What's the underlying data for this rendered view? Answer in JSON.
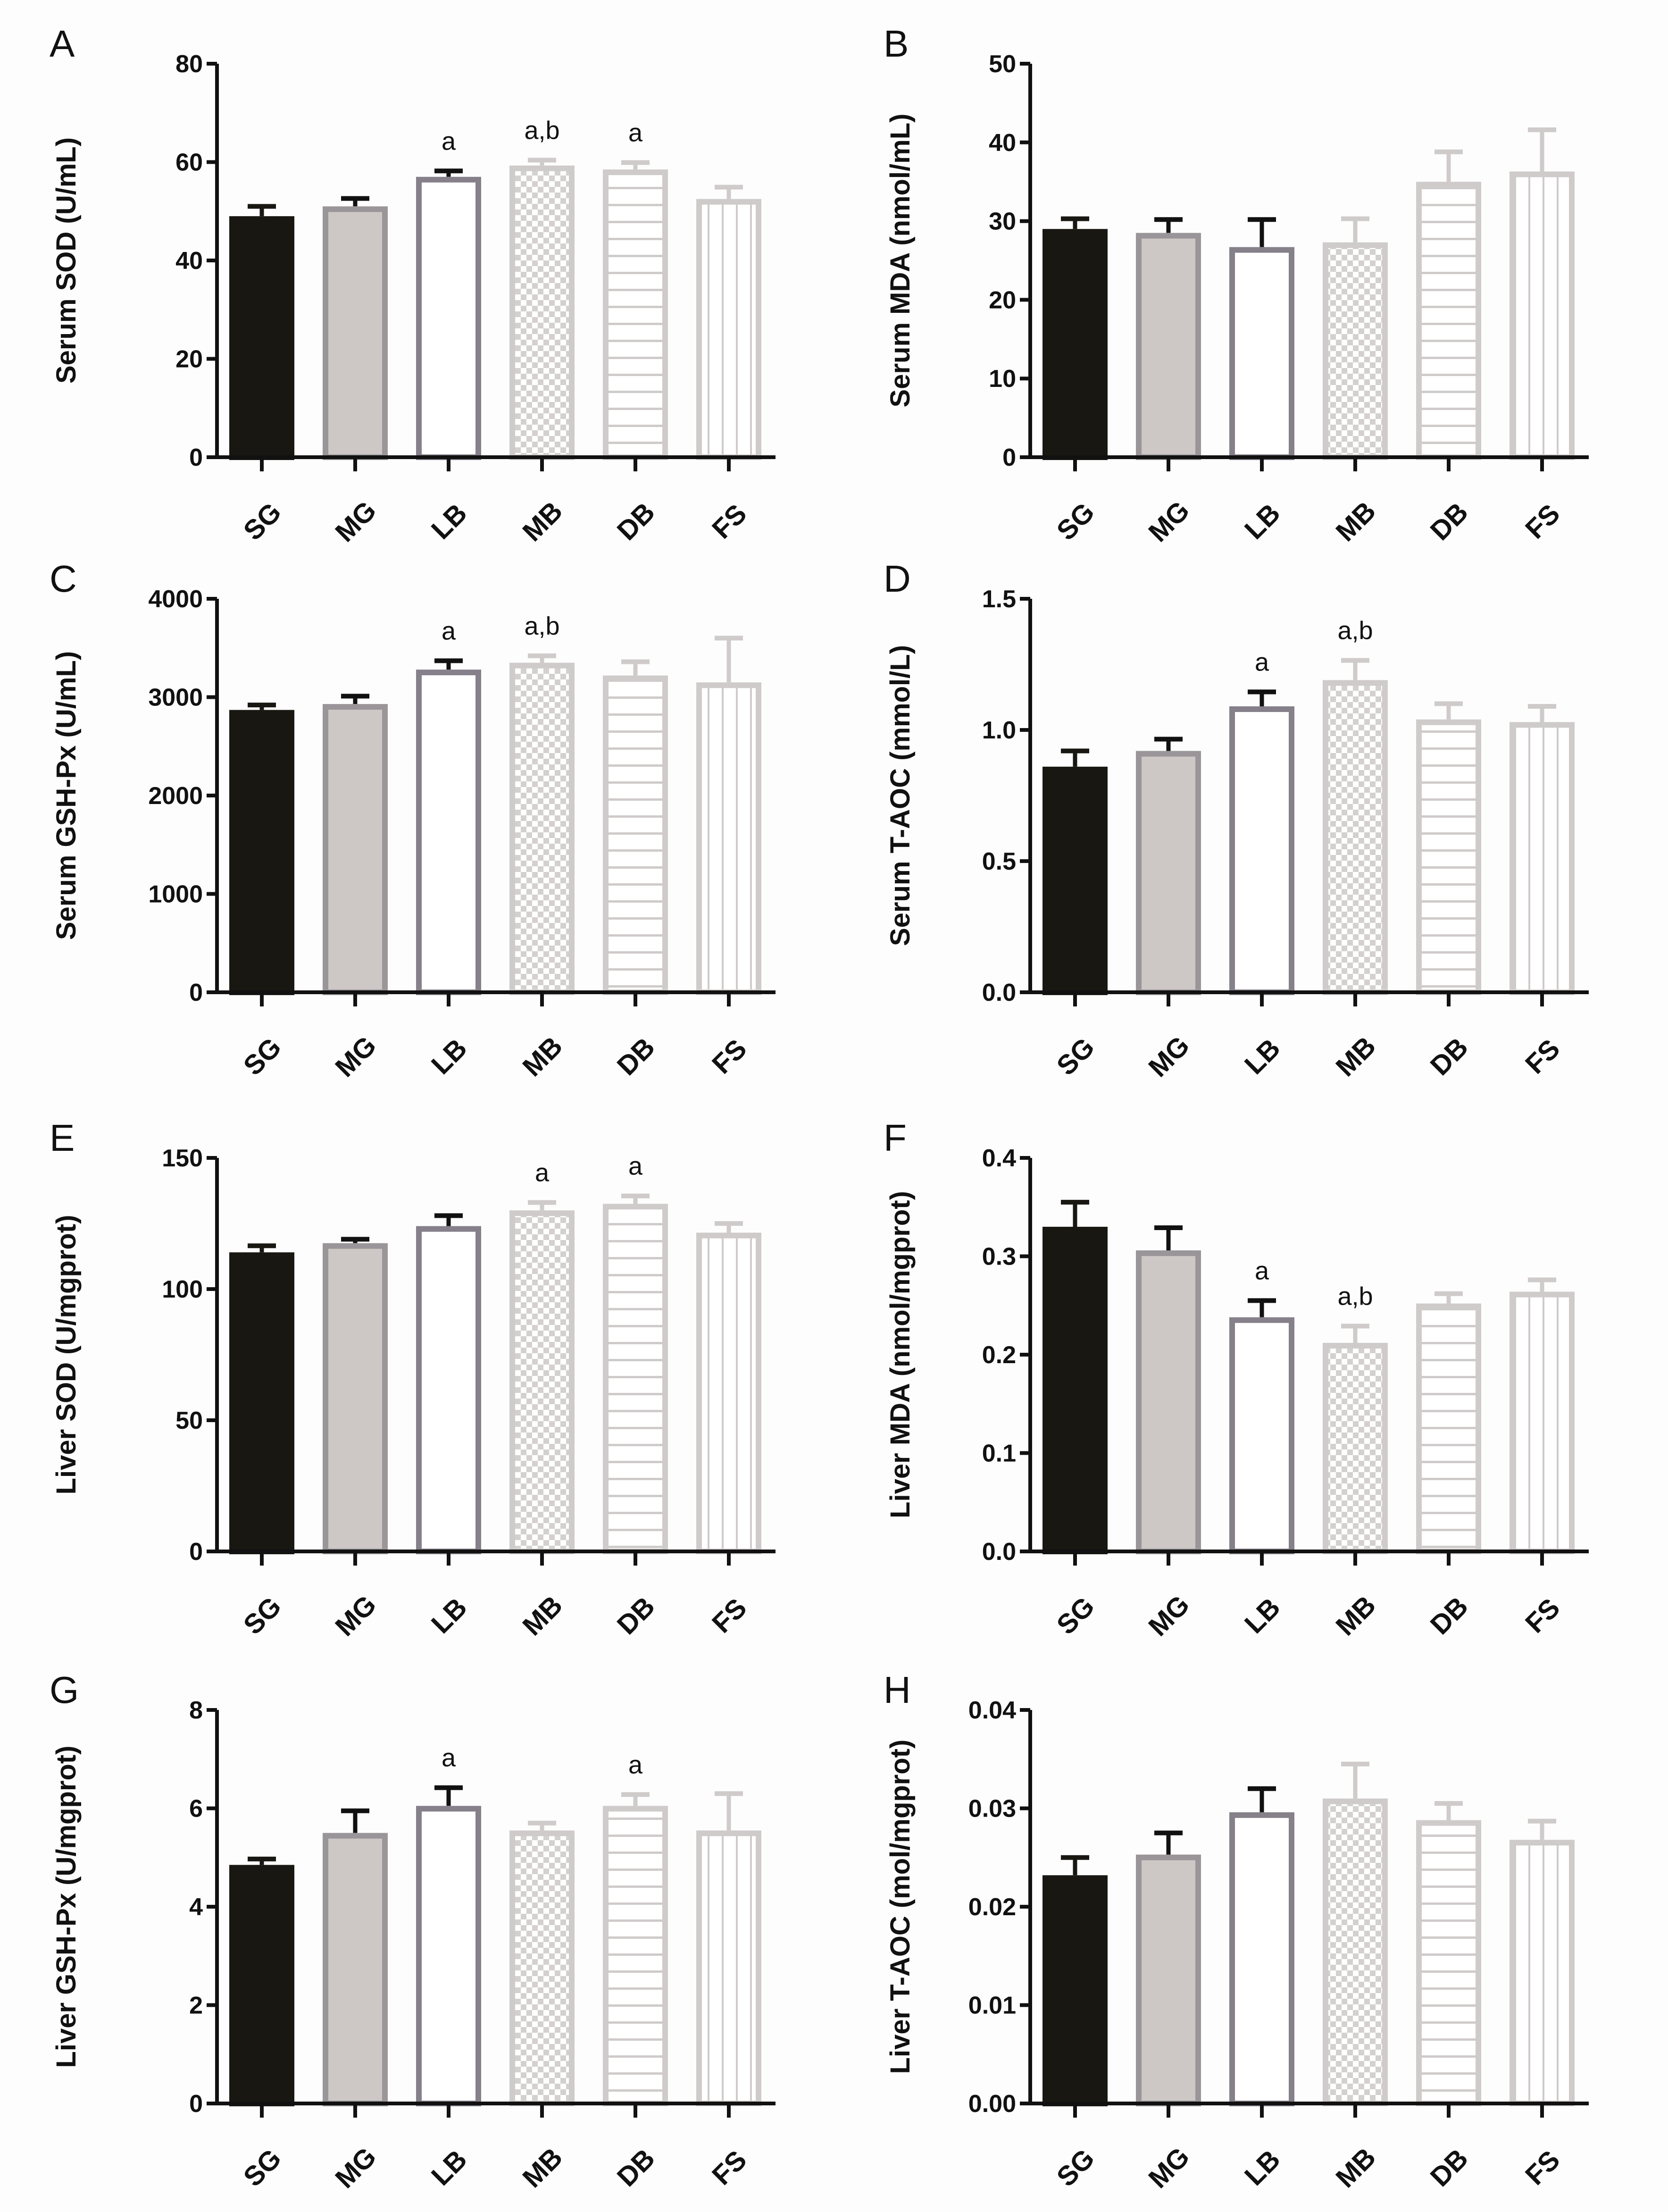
{
  "chart_data": [
    {
      "type": "bar",
      "panel": "A",
      "ylabel": "Serum SOD (U/mL)",
      "ylim": [
        0,
        80
      ],
      "yticks": [
        0,
        20,
        40,
        60,
        80
      ],
      "tick_labels": [
        "0",
        "20",
        "40",
        "60",
        "80"
      ],
      "categories": [
        "SG",
        "MG",
        "LB",
        "MB",
        "DB",
        "FS"
      ],
      "values": [
        49,
        51,
        57,
        59.3,
        58.5,
        52.5
      ],
      "errors": [
        2,
        1.6,
        1.2,
        1.1,
        1.4,
        2.4
      ],
      "annotations": [
        "",
        "",
        "a",
        "a,b",
        "a",
        ""
      ]
    },
    {
      "type": "bar",
      "panel": "B",
      "ylabel": "Serum MDA (nmol/mL)",
      "ylim": [
        0,
        50
      ],
      "yticks": [
        0,
        10,
        20,
        30,
        40,
        50
      ],
      "tick_labels": [
        "0",
        "10",
        "20",
        "30",
        "40",
        "50"
      ],
      "categories": [
        "SG",
        "MG",
        "LB",
        "MB",
        "DB",
        "FS"
      ],
      "values": [
        29,
        28.5,
        26.7,
        27.3,
        35,
        36.3
      ],
      "errors": [
        1.3,
        1.7,
        3.5,
        3,
        3.8,
        5.3
      ],
      "annotations": [
        "",
        "",
        "",
        "",
        "",
        ""
      ]
    },
    {
      "type": "bar",
      "panel": "C",
      "ylabel": "Serum GSH-Px (U/mL)",
      "ylim": [
        0,
        4000
      ],
      "yticks": [
        0,
        1000,
        2000,
        3000,
        4000
      ],
      "tick_labels": [
        "0",
        "1000",
        "2000",
        "3000",
        "4000"
      ],
      "categories": [
        "SG",
        "MG",
        "LB",
        "MB",
        "DB",
        "FS"
      ],
      "values": [
        2870,
        2930,
        3280,
        3350,
        3220,
        3150
      ],
      "errors": [
        50,
        80,
        90,
        70,
        140,
        450
      ],
      "annotations": [
        "",
        "",
        "a",
        "a,b",
        "",
        ""
      ]
    },
    {
      "type": "bar",
      "panel": "D",
      "ylabel": "Serum T-AOC (mmol/L)",
      "ylim": [
        0,
        1.5
      ],
      "yticks": [
        0,
        0.5,
        1,
        1.5
      ],
      "tick_labels": [
        "0.0",
        "0.5",
        "1.0",
        "1.5"
      ],
      "categories": [
        "SG",
        "MG",
        "LB",
        "MB",
        "DB",
        "FS"
      ],
      "values": [
        0.86,
        0.92,
        1.09,
        1.19,
        1.04,
        1.03
      ],
      "errors": [
        0.06,
        0.045,
        0.055,
        0.075,
        0.06,
        0.06
      ],
      "annotations": [
        "",
        "",
        "a",
        "a,b",
        "",
        ""
      ]
    },
    {
      "type": "bar",
      "panel": "E",
      "ylabel": "Liver SOD (U/mgprot)",
      "ylim": [
        0,
        150
      ],
      "yticks": [
        0,
        50,
        100,
        150
      ],
      "tick_labels": [
        "0",
        "50",
        "100",
        "150"
      ],
      "categories": [
        "SG",
        "MG",
        "LB",
        "MB",
        "DB",
        "FS"
      ],
      "values": [
        114,
        117.5,
        124,
        130,
        132.5,
        121.5
      ],
      "errors": [
        2.5,
        1.5,
        4,
        3,
        3,
        3.5
      ],
      "annotations": [
        "",
        "",
        "",
        "a",
        "a",
        ""
      ]
    },
    {
      "type": "bar",
      "panel": "F",
      "ylabel": "Liver MDA (nmol/mgprot)",
      "ylim": [
        0,
        0.4
      ],
      "yticks": [
        0,
        0.1,
        0.2,
        0.3,
        0.4
      ],
      "tick_labels": [
        "0.0",
        "0.1",
        "0.2",
        "0.3",
        "0.4"
      ],
      "categories": [
        "SG",
        "MG",
        "LB",
        "MB",
        "DB",
        "FS"
      ],
      "values": [
        0.33,
        0.306,
        0.238,
        0.212,
        0.252,
        0.264
      ],
      "errors": [
        0.025,
        0.023,
        0.017,
        0.017,
        0.01,
        0.012
      ],
      "annotations": [
        "",
        "",
        "a",
        "a,b",
        "",
        ""
      ]
    },
    {
      "type": "bar",
      "panel": "G",
      "ylabel": "Liver GSH-Px (U/mgprot)",
      "ylim": [
        0,
        8
      ],
      "yticks": [
        0,
        2,
        4,
        6,
        8
      ],
      "tick_labels": [
        "0",
        "2",
        "4",
        "6",
        "8"
      ],
      "categories": [
        "SG",
        "MG",
        "LB",
        "MB",
        "DB",
        "FS"
      ],
      "values": [
        4.85,
        5.5,
        6.05,
        5.55,
        6.05,
        5.55
      ],
      "errors": [
        0.12,
        0.45,
        0.37,
        0.15,
        0.23,
        0.75
      ],
      "annotations": [
        "",
        "",
        "a",
        "",
        "a",
        ""
      ]
    },
    {
      "type": "bar",
      "panel": "H",
      "ylabel": "Liver T-AOC (mol/mgprot)",
      "ylim": [
        0,
        0.04
      ],
      "yticks": [
        0,
        0.01,
        0.02,
        0.03,
        0.04
      ],
      "tick_labels": [
        "0.00",
        "0.01",
        "0.02",
        "0.03",
        "0.04"
      ],
      "categories": [
        "SG",
        "MG",
        "LB",
        "MB",
        "DB",
        "FS"
      ],
      "values": [
        0.0232,
        0.0253,
        0.0296,
        0.031,
        0.0288,
        0.0268
      ],
      "errors": [
        0.0018,
        0.0022,
        0.0024,
        0.0035,
        0.0017,
        0.0019
      ],
      "annotations": [
        "",
        "",
        "",
        "",
        "",
        ""
      ]
    }
  ],
  "colors": {
    "SG": "#181712",
    "MG": "#cdc8c6",
    "MG_stroke": "#9a9599",
    "LB": "#ffffff",
    "LB_stroke": "#85808a",
    "light": "#cfcbca",
    "axis": "#111111"
  }
}
